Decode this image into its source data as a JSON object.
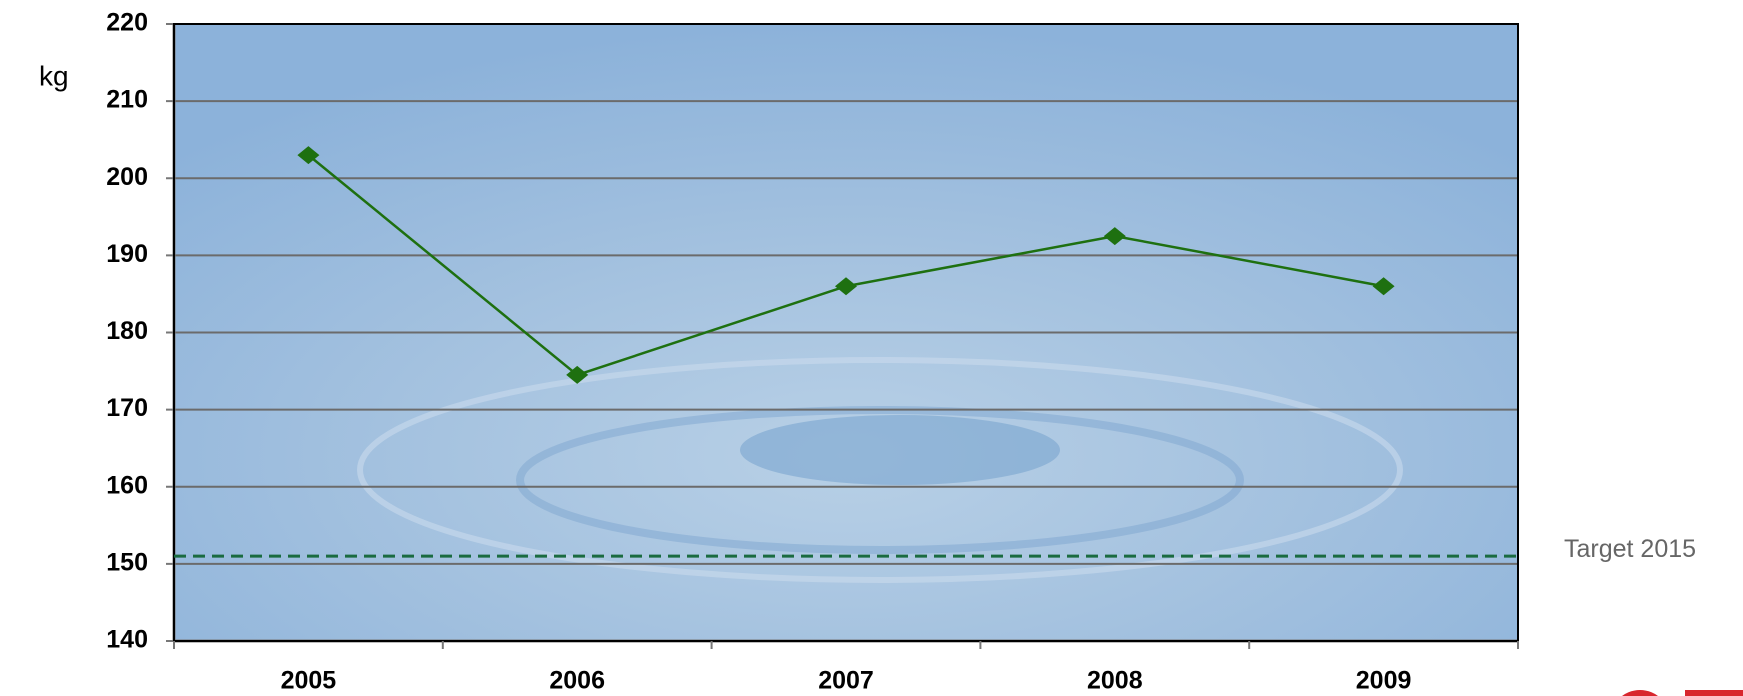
{
  "chart_data": {
    "type": "line",
    "y_label": "kg",
    "categories": [
      "2005",
      "2006",
      "2007",
      "2008",
      "2009"
    ],
    "values": [
      203,
      174.5,
      186,
      192.5,
      186
    ],
    "color": "#1e7010",
    "ylim": [
      140,
      220
    ],
    "yticks": [
      140,
      150,
      160,
      170,
      180,
      190,
      200,
      210,
      220
    ],
    "grid": true,
    "target": {
      "label": "Target 2015",
      "value": 151,
      "color": "#1a6b40"
    }
  }
}
